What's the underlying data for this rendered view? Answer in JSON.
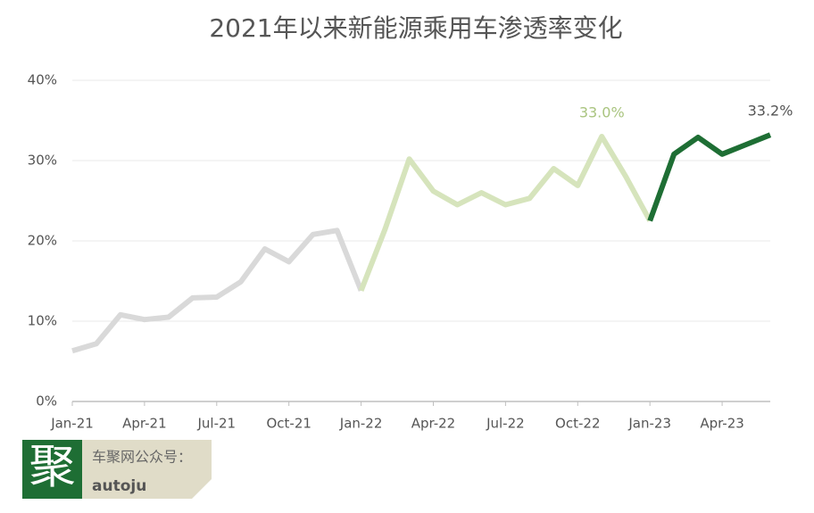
{
  "chart_data": {
    "type": "line",
    "title": "2021年以来新能源乘用车渗透率变化",
    "categories": [
      "Jan-21",
      null,
      null,
      "Apr-21",
      null,
      null,
      "Jul-21",
      null,
      null,
      "Oct-21",
      null,
      null,
      "Jan-22",
      null,
      null,
      "Apr-22",
      null,
      null,
      "Jul-22",
      null,
      null,
      "Oct-22",
      null,
      null,
      "Jan-23",
      null,
      null,
      "Apr-23",
      null,
      null
    ],
    "series": [
      {
        "color": "#d9d9d9",
        "label_color": "#555555",
        "values": [
          6.3,
          7.2,
          10.8,
          10.2,
          10.5,
          12.9,
          13.0,
          14.9,
          19.0,
          17.4,
          20.8,
          21.3,
          13.8,
          null,
          null,
          null,
          null,
          null,
          null,
          null,
          null,
          null,
          null,
          null,
          null,
          null,
          null,
          null,
          null,
          null
        ]
      },
      {
        "color": "#d6e4bc",
        "label_color": "#a9c47f",
        "values": [
          null,
          null,
          null,
          null,
          null,
          null,
          null,
          null,
          null,
          null,
          null,
          null,
          13.8,
          21.5,
          30.2,
          26.2,
          24.5,
          26.0,
          24.5,
          25.3,
          29.0,
          26.9,
          33.0,
          28.0,
          22.5,
          null,
          null,
          null,
          null,
          null
        ],
        "value_labels": [
          null,
          null,
          null,
          null,
          null,
          null,
          null,
          null,
          null,
          null,
          null,
          null,
          null,
          null,
          null,
          null,
          null,
          null,
          null,
          null,
          null,
          null,
          "33.0%",
          null,
          null,
          null,
          null,
          null,
          null,
          null
        ]
      },
      {
        "color": "#1e6e34",
        "label_color": "#555555",
        "values": [
          null,
          null,
          null,
          null,
          null,
          null,
          null,
          null,
          null,
          null,
          null,
          null,
          null,
          null,
          null,
          null,
          null,
          null,
          null,
          null,
          null,
          null,
          null,
          null,
          22.5,
          30.8,
          32.9,
          30.8,
          32.0,
          33.2
        ],
        "value_labels": [
          null,
          null,
          null,
          null,
          null,
          null,
          null,
          null,
          null,
          null,
          null,
          null,
          null,
          null,
          null,
          null,
          null,
          null,
          null,
          null,
          null,
          null,
          null,
          null,
          null,
          null,
          null,
          null,
          null,
          "33.2%"
        ]
      }
    ],
    "ylim": [
      0,
      40
    ],
    "yticks": [
      {
        "value": 0,
        "label": "0%"
      },
      {
        "value": 10,
        "label": "10%"
      },
      {
        "value": 20,
        "label": "20%"
      },
      {
        "value": 30,
        "label": "30%"
      },
      {
        "value": 40,
        "label": "40%"
      }
    ],
    "grid": true
  },
  "watermark": {
    "logo": "聚",
    "caption": "车聚网公众号：",
    "account": "autoju"
  }
}
